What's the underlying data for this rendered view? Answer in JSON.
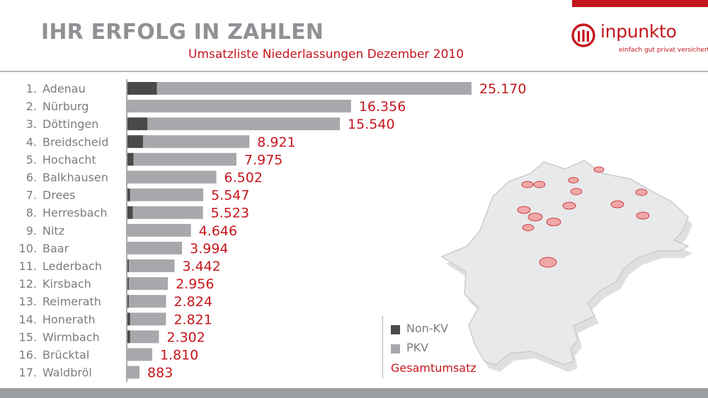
{
  "header": {
    "title": "IHR ERFOLG IN ZAHLEN",
    "subtitle": "Umsatzliste Niederlassungen Dezember 2010"
  },
  "logo": {
    "wordmark": "inpunkto",
    "tagline": "einfach gut privat versichert."
  },
  "colors": {
    "accent": "#c4161c",
    "non_kv": "#4a4a4a",
    "pkv": "#a6a8ab",
    "title_gray": "#8f9194",
    "label_gray": "#7a7c7f"
  },
  "legend": {
    "non_kv": "Non-KV",
    "pkv": "PKV",
    "total": "Gesamtumsatz"
  },
  "chart_data": {
    "type": "bar",
    "orientation": "horizontal",
    "stacked": true,
    "categories": [
      "1. Adenau",
      "2. Nürburg",
      "3. Döttingen",
      "4. Breidscheid",
      "5. Hochacht",
      "6. Balkhausen",
      "7. Drees",
      "8. Herresbach",
      "9. Nitz",
      "10. Baar",
      "11. Lederbach",
      "12. Kirsbach",
      "13. Reimerath",
      "14. Honerath",
      "15. Wirmbach",
      "16. Brücktal",
      "17. Waldbröl"
    ],
    "value_labels": [
      "25.170",
      "16.356",
      "15.540",
      "8.921",
      "7.975",
      "6.502",
      "5.547",
      "5.523",
      "4.646",
      "3.994",
      "3.442",
      "2.956",
      "2.824",
      "2.821",
      "2.302",
      "1.810",
      "883"
    ],
    "totals": [
      25170,
      16356,
      15540,
      8921,
      7975,
      6502,
      5547,
      5523,
      4646,
      3994,
      3442,
      2956,
      2824,
      2821,
      2302,
      1810,
      883
    ],
    "series": [
      {
        "name": "Non-KV",
        "values": [
          2150,
          0,
          1470,
          1150,
          450,
          0,
          200,
          400,
          0,
          0,
          100,
          100,
          100,
          200,
          200,
          0,
          0
        ]
      },
      {
        "name": "PKV",
        "values": [
          23020,
          16356,
          14070,
          7771,
          7525,
          6502,
          5347,
          5123,
          4646,
          3994,
          3342,
          2856,
          2724,
          2621,
          2102,
          1810,
          883
        ]
      }
    ],
    "xlim": [
      0,
      25170
    ],
    "grid": false,
    "legend_position": "bottom-right"
  }
}
